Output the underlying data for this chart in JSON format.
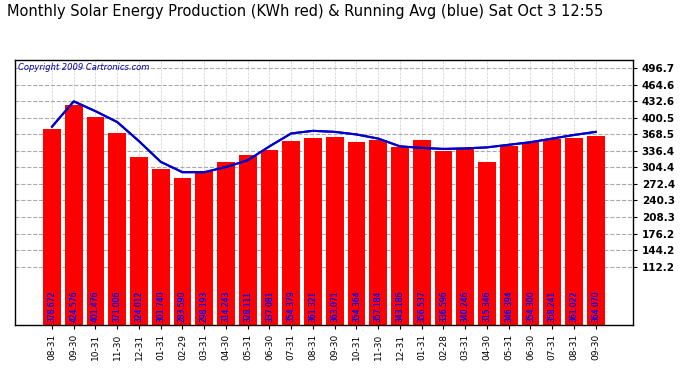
{
  "title": "Monthly Solar Energy Production (KWh red) & Running Avg (blue) Sat Oct 3 12:55",
  "copyright": "Copyright 2009 Cartronics.com",
  "categories": [
    "08-31",
    "09-30",
    "10-31",
    "11-30",
    "12-31",
    "01-31",
    "02-29",
    "03-31",
    "04-30",
    "05-31",
    "06-30",
    "07-31",
    "08-31",
    "09-30",
    "10-31",
    "11-30",
    "12-31",
    "01-31",
    "02-28",
    "03-31",
    "04-30",
    "05-31",
    "06-30",
    "07-31",
    "08-31",
    "09-30"
  ],
  "bar_values": [
    378.672,
    424.576,
    401.476,
    371.006,
    324.012,
    301.74,
    283.59,
    298.193,
    314.243,
    328.111,
    337.081,
    354.379,
    361.321,
    363.071,
    354.364,
    357.184,
    343.186,
    356.537,
    336.596,
    340.246,
    315.346,
    346.394,
    354.3,
    358.241,
    361.022,
    364.07
  ],
  "running_avg": [
    383.0,
    432.0,
    413.0,
    392.0,
    355.0,
    315.0,
    295.0,
    295.0,
    305.0,
    318.0,
    345.0,
    370.0,
    375.0,
    373.0,
    368.0,
    360.0,
    345.0,
    342.0,
    340.0,
    341.0,
    343.0,
    348.0,
    353.0,
    360.0,
    367.0,
    373.0
  ],
  "bar_color": "#FF0000",
  "line_color": "#0000CC",
  "background_color": "#FFFFFF",
  "title_fontsize": 10.5,
  "ytick_vals": [
    496.7,
    464.6,
    432.6,
    400.5,
    368.5,
    336.4,
    304.4,
    272.4,
    240.3,
    208.3,
    176.2,
    144.2,
    112.2
  ],
  "ymin": 0,
  "ymax": 512,
  "copyright_color": "#0000AA",
  "label_color": "blue",
  "label_fontsize": 5.5
}
